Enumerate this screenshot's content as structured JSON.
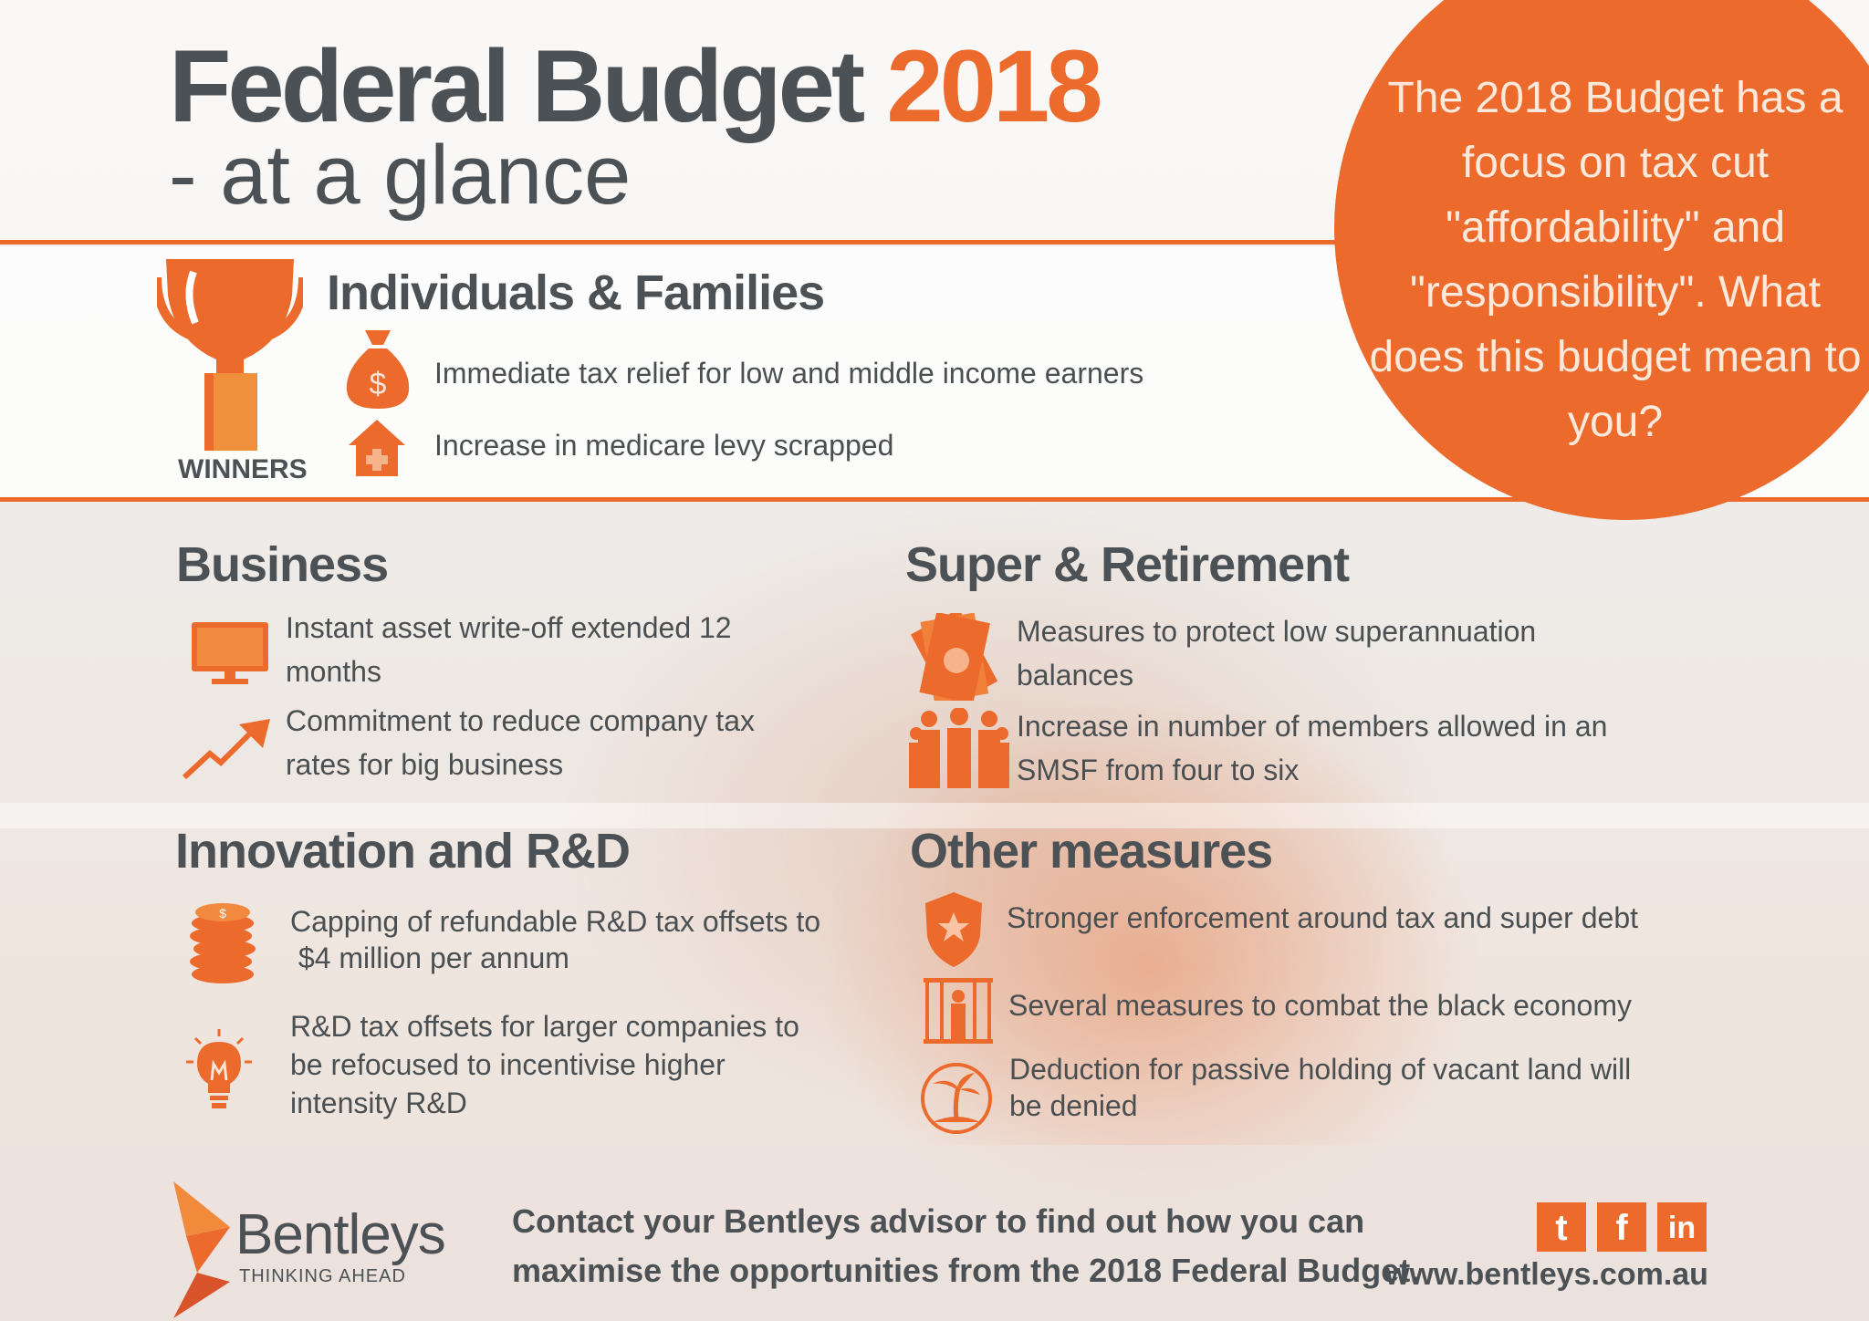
{
  "header": {
    "title_part1": "Federal Budget",
    "title_year": "2018",
    "subtitle": "- at a glance"
  },
  "callout": {
    "text": "The 2018 Budget has a focus on tax cut \"affordability\" and \"responsibility\". What does this budget mean to you?"
  },
  "winners_label": "WINNERS",
  "individuals": {
    "heading": "Individuals & Families",
    "items": [
      {
        "text": "Immediate tax relief for low and middle income earners",
        "icon": "money-bag-icon"
      },
      {
        "text": "Increase in medicare levy scrapped",
        "icon": "medical-house-icon"
      }
    ]
  },
  "business": {
    "heading": "Business",
    "items": [
      {
        "line1": "Instant asset write-off extended 12",
        "line2": "months",
        "icon": "monitor-icon"
      },
      {
        "line1": "Commitment to reduce company tax",
        "line2": "rates for big business",
        "icon": "trend-up-arrow-icon"
      }
    ]
  },
  "super": {
    "heading": "Super & Retirement",
    "items": [
      {
        "line1": "Measures to protect low superannuation",
        "line2": "balances",
        "icon": "banknotes-icon"
      },
      {
        "line1": "Increase in number of members allowed  in an",
        "line2": "SMSF from four to six",
        "icon": "people-group-icon"
      }
    ]
  },
  "innovation": {
    "heading": "Innovation and R&D",
    "items": [
      {
        "line1": "Capping of refundable R&D tax offsets to",
        "line2": " $4 million per annum",
        "icon": "coin-stack-icon"
      },
      {
        "line1": "R&D tax offsets for larger companies to",
        "line2": "be refocused to incentivise higher",
        "line3": "intensity R&D",
        "icon": "lightbulb-icon"
      }
    ]
  },
  "other": {
    "heading": "Other measures",
    "items": [
      {
        "line1": "Stronger enforcement around tax and super debt",
        "icon": "police-badge-icon"
      },
      {
        "line1": "Several measures to combat the black economy",
        "icon": "prison-bars-icon"
      },
      {
        "line1": "Deduction for passive holding of vacant land will",
        "line2": "be denied",
        "icon": "palm-island-icon"
      }
    ]
  },
  "footer": {
    "brand": "Bentleys",
    "tagline": "THINKING AHEAD",
    "cta_line1": "Contact your Bentleys advisor to find out how you can",
    "cta_line2": "maximise the opportunities from the 2018 Federal Budget.",
    "website": "www.bentleys.com.au",
    "social": [
      {
        "icon": "twitter-icon",
        "glyph": "t"
      },
      {
        "icon": "facebook-icon",
        "glyph": "f"
      },
      {
        "icon": "linkedin-icon",
        "glyph": "in"
      }
    ]
  },
  "colors": {
    "accent": "#ec6a2c",
    "text": "#4b5154"
  }
}
